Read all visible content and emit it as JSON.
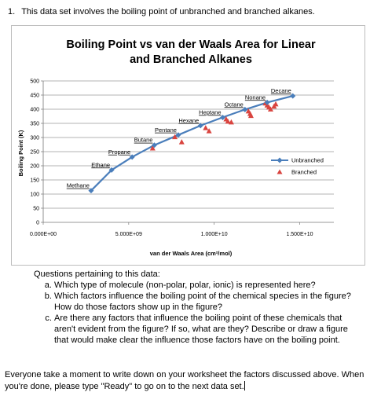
{
  "intro": {
    "number": "1.",
    "text": "This data set involves the boiling point of unbranched and branched alkanes."
  },
  "chart_data": {
    "type": "scatter",
    "title_line1": "Boiling Point vs van der Waals Area for Linear",
    "title_line2": "and Branched Alkanes",
    "xlabel": "van der Waals Area (cm²/mol)",
    "ylabel": "Boiling Point (K)",
    "xlim": [
      0,
      17000000000
    ],
    "ylim": [
      0,
      500
    ],
    "x_ticks": [
      0,
      5000000000,
      10000000000,
      15000000000
    ],
    "x_tick_labels": [
      "0.000E+00",
      "5.000E+09",
      "1.000E+10",
      "1.500E+10"
    ],
    "y_ticks": [
      0,
      50,
      100,
      150,
      200,
      250,
      300,
      350,
      400,
      450,
      500
    ],
    "y_tick_labels": [
      "0",
      "50",
      "100",
      "150",
      "200",
      "250",
      "300",
      "350",
      "400",
      "450",
      "500"
    ],
    "grid": "horizontal",
    "legend_position": "right",
    "series": [
      {
        "name": "Unbranched",
        "color": "#4a7ebb",
        "marker": "diamond",
        "line": true,
        "points": [
          {
            "x": 2800000000,
            "y": 112,
            "label": "Methane"
          },
          {
            "x": 4000000000,
            "y": 185,
            "label": "Ethane"
          },
          {
            "x": 5200000000,
            "y": 231,
            "label": "Propane"
          },
          {
            "x": 6500000000,
            "y": 273,
            "label": "Butane"
          },
          {
            "x": 7900000000,
            "y": 309,
            "label": "Pentane"
          },
          {
            "x": 9200000000,
            "y": 342,
            "label": "Hexane"
          },
          {
            "x": 10500000000,
            "y": 371,
            "label": "Heptane"
          },
          {
            "x": 11800000000,
            "y": 399,
            "label": "Octane"
          },
          {
            "x": 13100000000,
            "y": 424,
            "label": "Nonane"
          },
          {
            "x": 14600000000,
            "y": 447,
            "label": "Decane"
          }
        ]
      },
      {
        "name": "Branched",
        "color": "#d9443f",
        "marker": "triangle",
        "line": false,
        "points": [
          {
            "x": 6400000000,
            "y": 261
          },
          {
            "x": 7700000000,
            "y": 301
          },
          {
            "x": 8100000000,
            "y": 283
          },
          {
            "x": 9500000000,
            "y": 333
          },
          {
            "x": 9700000000,
            "y": 322
          },
          {
            "x": 10700000000,
            "y": 364
          },
          {
            "x": 10800000000,
            "y": 356
          },
          {
            "x": 11000000000,
            "y": 353
          },
          {
            "x": 12000000000,
            "y": 392
          },
          {
            "x": 12100000000,
            "y": 383
          },
          {
            "x": 12150000000,
            "y": 376
          },
          {
            "x": 13000000000,
            "y": 420
          },
          {
            "x": 13100000000,
            "y": 413
          },
          {
            "x": 13200000000,
            "y": 406
          },
          {
            "x": 13300000000,
            "y": 399
          },
          {
            "x": 13500000000,
            "y": 409
          },
          {
            "x": 13600000000,
            "y": 417
          }
        ]
      }
    ]
  },
  "questions": {
    "heading": "Questions pertaining to this data:",
    "items": [
      "Which type of molecule (non-polar, polar, ionic) is represented here?",
      "Which factors influence the boiling point of the chemical species in the figure?  How do those factors show up in the figure?",
      "Are there any factors that influence the boiling point of these chemicals that aren't evident from the figure?  If so, what are they?  Describe or draw a figure that would make clear the influence those factors have on the boiling point."
    ]
  },
  "footer": {
    "text": "Everyone take a moment to write down on your worksheet the factors discussed above. When you're done, please type \"Ready\" to go on to the next data set."
  }
}
